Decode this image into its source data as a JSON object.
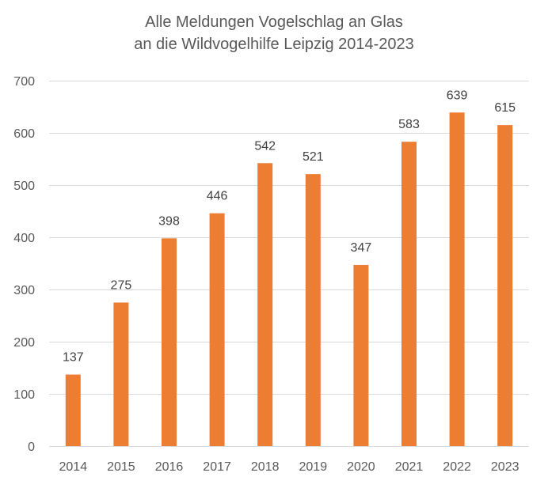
{
  "chart_data": {
    "type": "bar",
    "title_lines": [
      "Alle Meldungen Vogelschlag an Glas",
      "an die Wildvogelhilfe Leipzig 2014-2023"
    ],
    "categories": [
      "2014",
      "2015",
      "2016",
      "2017",
      "2018",
      "2019",
      "2020",
      "2021",
      "2022",
      "2023"
    ],
    "values": [
      137,
      275,
      398,
      446,
      542,
      521,
      347,
      583,
      639,
      615
    ],
    "ylim": [
      0,
      700
    ],
    "yticks": [
      0,
      100,
      200,
      300,
      400,
      500,
      600,
      700
    ],
    "grid": true,
    "legend": "none",
    "data_labels": true,
    "bar_color": "#ED7D31",
    "xlabel": "",
    "ylabel": ""
  }
}
